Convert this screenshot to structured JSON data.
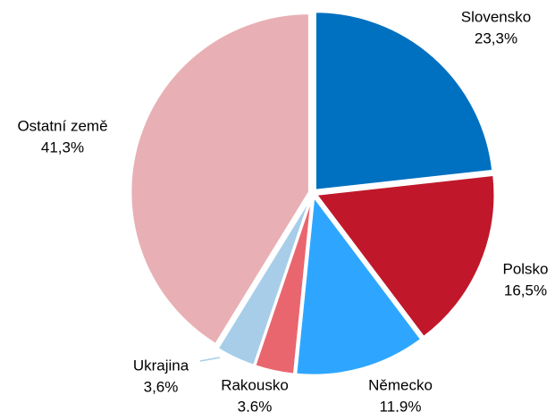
{
  "chart_data": {
    "type": "pie",
    "categories": [
      "Slovensko",
      "Polsko",
      "Německo",
      "Rakousko",
      "Ukrajina",
      "Ostatní země"
    ],
    "values": [
      23.3,
      16.5,
      11.9,
      3.6,
      3.6,
      41.3
    ],
    "value_labels": [
      "23,3%",
      "16,5%",
      "11,9%",
      "3,6%",
      "3,6%",
      "41,3%"
    ],
    "colors": [
      "#0070c0",
      "#c0182a",
      "#2ea6ff",
      "#e9666e",
      "#a7cde9",
      "#e8b0b4"
    ]
  }
}
